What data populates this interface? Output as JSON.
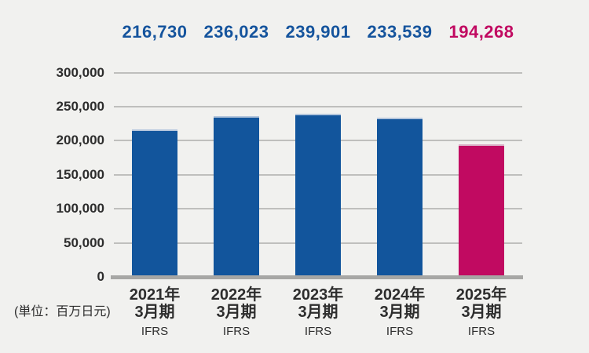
{
  "chart_data": {
    "type": "bar",
    "title": "",
    "unit_label": "(単位：百万日元)",
    "categories": [
      "2021年3月期",
      "2022年3月期",
      "2023年3月期",
      "2024年3月期",
      "2025年3月期"
    ],
    "category_line1": [
      "2021年",
      "2022年",
      "2023年",
      "2024年",
      "2025年"
    ],
    "category_line2": [
      "3月期",
      "3月期",
      "3月期",
      "3月期",
      "3月期"
    ],
    "standard_labels": [
      "IFRS",
      "IFRS",
      "IFRS",
      "IFRS",
      "IFRS"
    ],
    "values": [
      216730,
      236023,
      239901,
      233539,
      194268
    ],
    "value_labels": [
      "216,730",
      "236,023",
      "239,901",
      "233,539",
      "194,268"
    ],
    "ylim": [
      0,
      300000
    ],
    "ytick_interval": 50000,
    "ytick_values": [
      0,
      50000,
      100000,
      150000,
      200000,
      250000,
      300000
    ],
    "ytick_labels": [
      "0",
      "50,000",
      "100,000",
      "150,000",
      "200,000",
      "250,000",
      "300,000"
    ],
    "grid": true,
    "legend": false,
    "bar_colors": [
      "#12559C",
      "#12559C",
      "#12559C",
      "#12559C",
      "#C10A61"
    ],
    "bar_top_edge_colors": [
      "#b3c5dc",
      "#b3c5dc",
      "#b3c5dc",
      "#b3c5dc",
      "#d9aec5"
    ],
    "value_label_colors": [
      "#15549D",
      "#15549D",
      "#15549D",
      "#15549D",
      "#C10A61"
    ]
  },
  "colors": {
    "background": "#f1f1ef",
    "gridline": "#bfbfbd",
    "axis_line": "#a7a7a5",
    "text": "#2d2d2d"
  }
}
